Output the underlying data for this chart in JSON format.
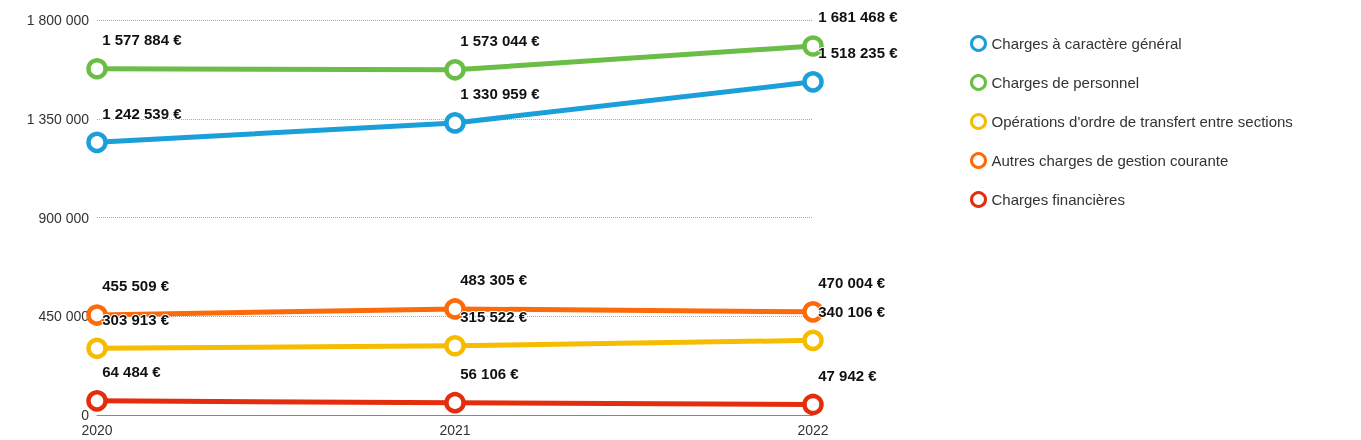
{
  "chart_data": {
    "type": "line",
    "categories": [
      "2020",
      "2021",
      "2022"
    ],
    "ylim": [
      0,
      1800000
    ],
    "yticks": [
      0,
      {
        "value": 450000,
        "label": "450 000"
      },
      {
        "value": 900000,
        "label": "900 000"
      },
      {
        "value": 1350000,
        "label": "1 350 000"
      },
      {
        "value": 1800000,
        "label": "1 800 000"
      }
    ],
    "grid": "y",
    "legend": "right",
    "marker": "circle",
    "line_style": "solid",
    "series": [
      {
        "name": "Charges à caractère général",
        "color": "#1a9fd9",
        "values": [
          1242539,
          1330959,
          1518235
        ],
        "value_labels": [
          "1 242 539 €",
          "1 330 959 €",
          "1 518 235 €"
        ]
      },
      {
        "name": "Charges de personnel",
        "color": "#6abd45",
        "values": [
          1577884,
          1573044,
          1681468
        ],
        "value_labels": [
          "1 577 884 €",
          "1 573 044 €",
          "1 681 468 €"
        ]
      },
      {
        "name": "Opérations d'ordre de transfert entre sections",
        "color": "#f6bc00",
        "values": [
          303913,
          315522,
          340106
        ],
        "value_labels": [
          "303 913 €",
          "315 522 €",
          "340 106 €"
        ]
      },
      {
        "name": "Autres charges de gestion courante",
        "color": "#fd6a0a",
        "values": [
          455509,
          483305,
          470004
        ],
        "value_labels": [
          "455 509 €",
          "483 305 €",
          "470 004 €"
        ]
      },
      {
        "name": "Charges financières",
        "color": "#e42d0c",
        "values": [
          64484,
          56106,
          47942
        ],
        "value_labels": [
          "64 484 €",
          "56 106 €",
          "47 942 €"
        ]
      }
    ]
  }
}
